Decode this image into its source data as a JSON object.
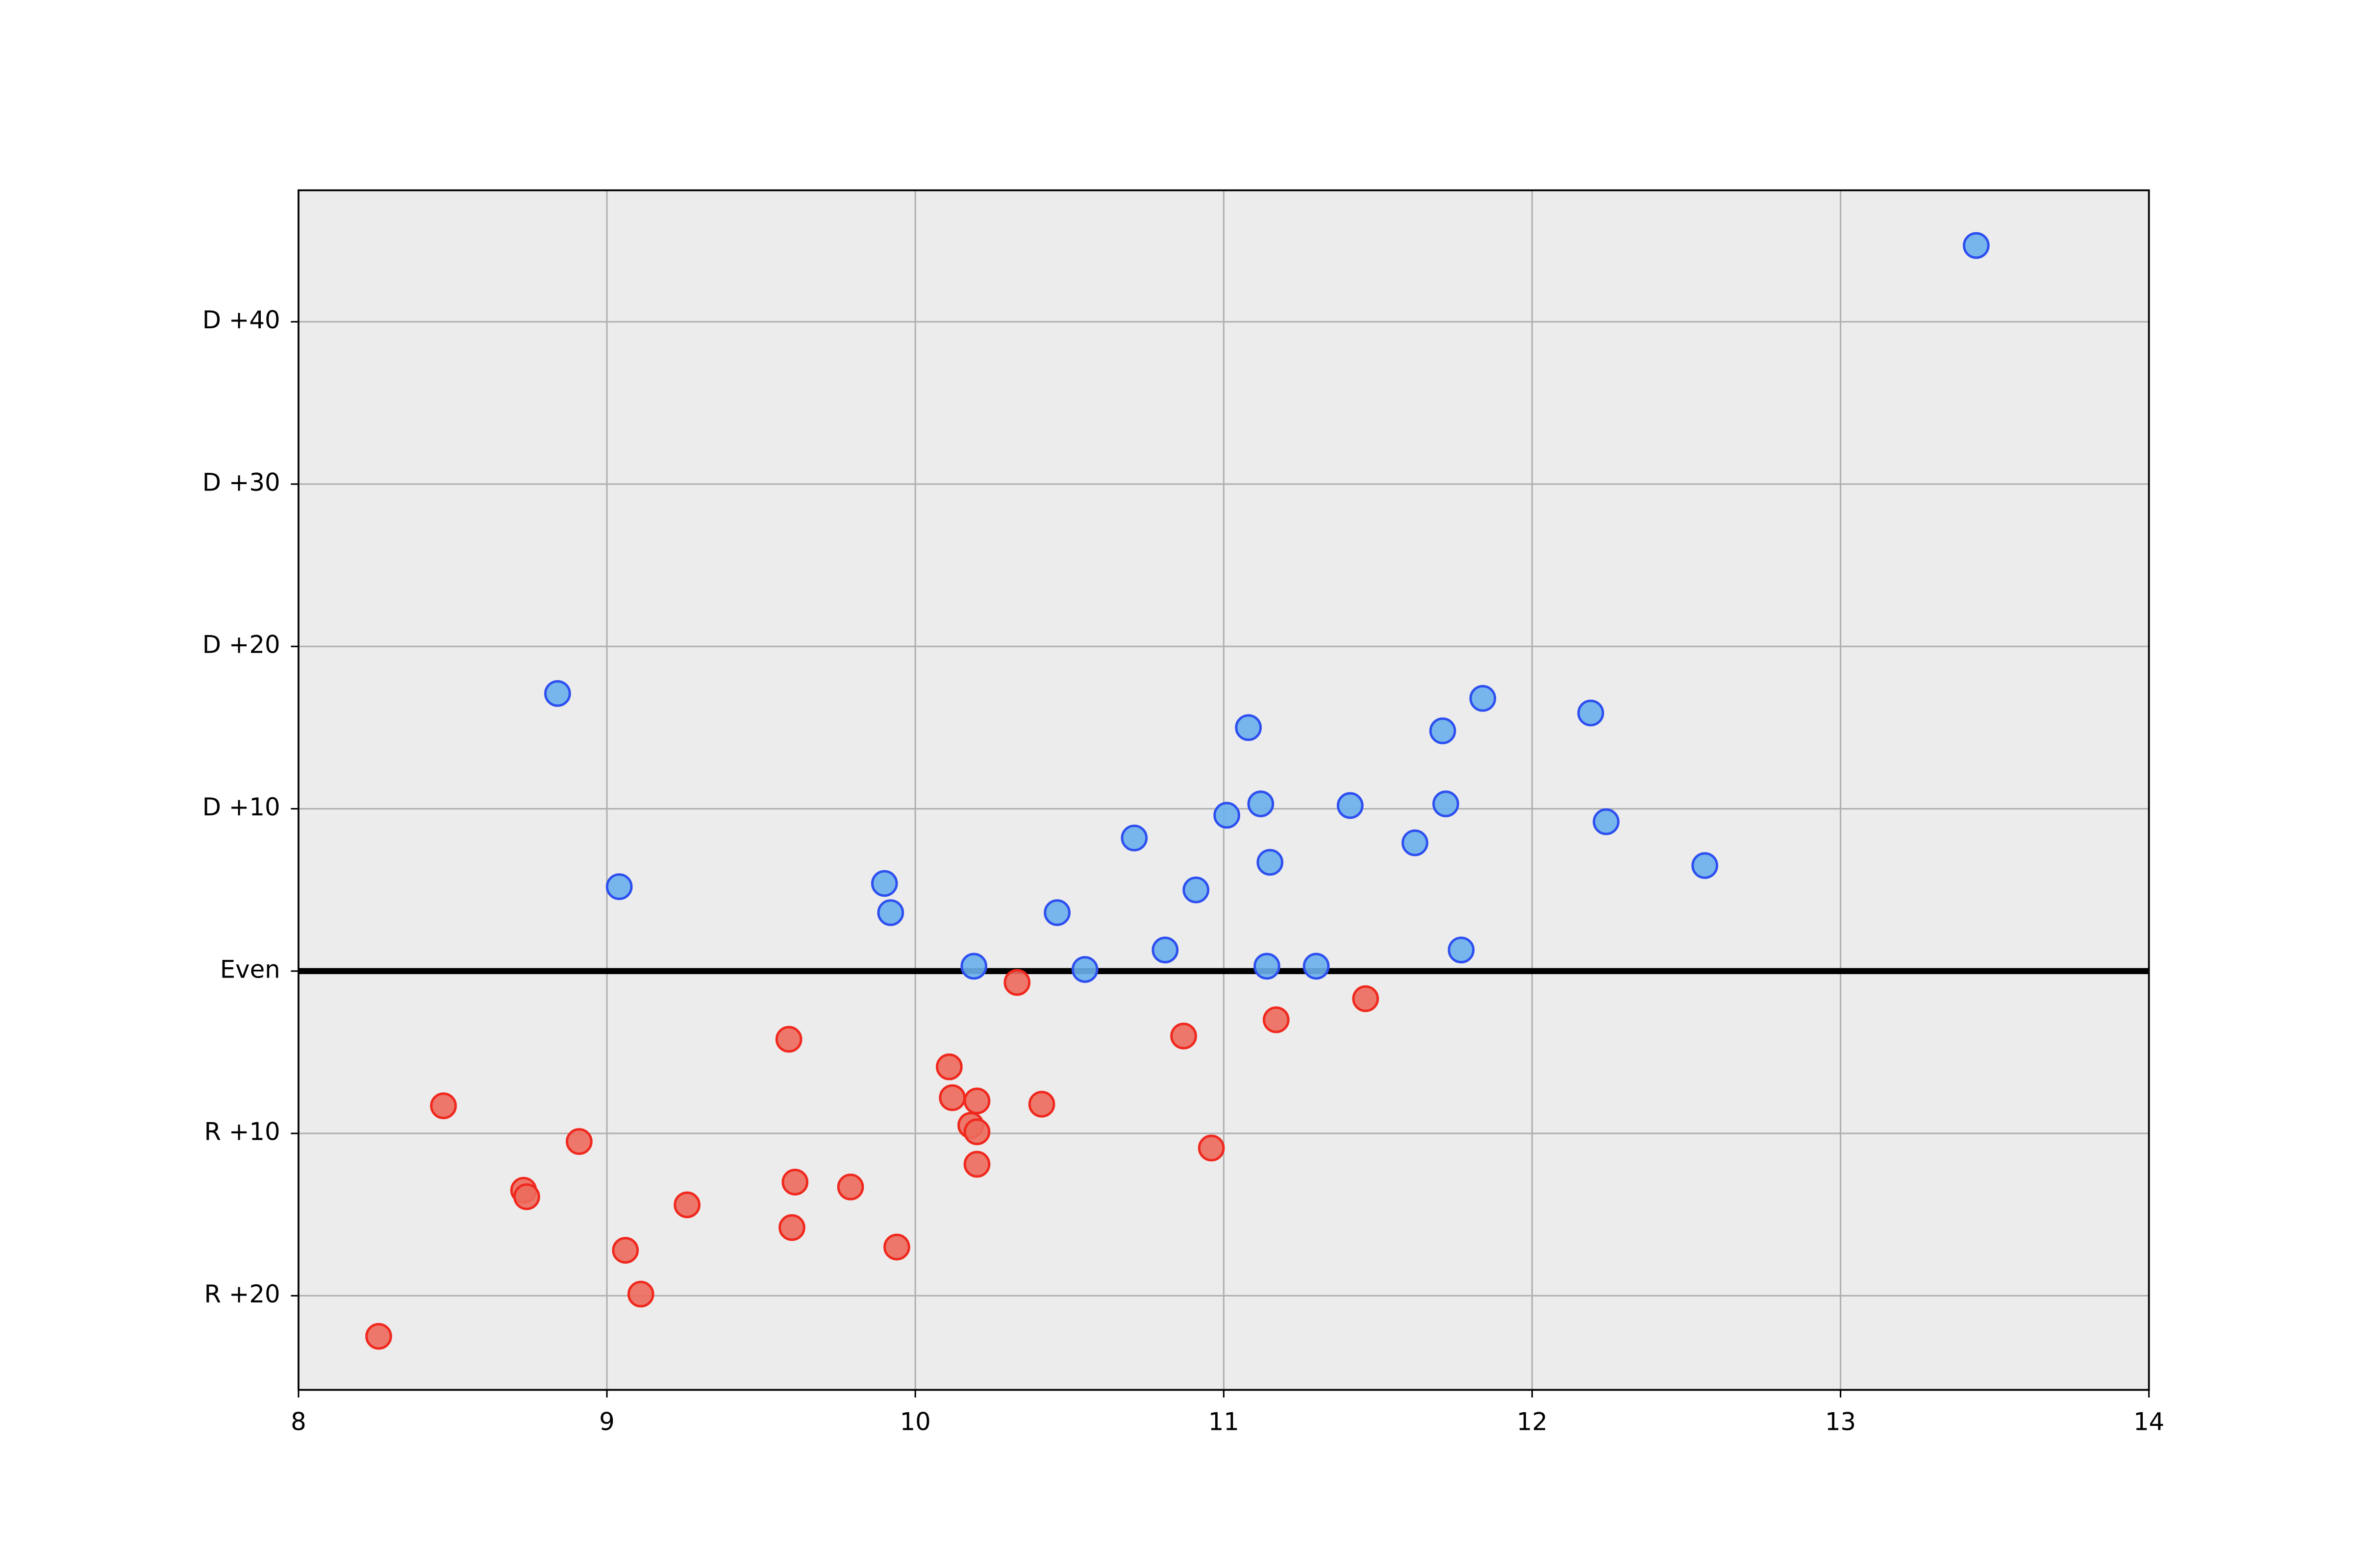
{
  "chart_data": {
    "type": "scatter",
    "xlim": [
      8,
      14
    ],
    "xticks": [
      8,
      9,
      10,
      11,
      12,
      13,
      14
    ],
    "ylim": [
      -25.8,
      48.1
    ],
    "yticks": [
      {
        "value": -20,
        "label": "R +20"
      },
      {
        "value": -10,
        "label": "R +10"
      },
      {
        "value": 0,
        "label": "Even"
      },
      {
        "value": 10,
        "label": "D +10"
      },
      {
        "value": 20,
        "label": "D +20"
      },
      {
        "value": 30,
        "label": "D +30"
      },
      {
        "value": 40,
        "label": "D +40"
      }
    ],
    "grid": true,
    "hline": 0,
    "background": "#ececec",
    "series": [
      {
        "color": "#6ab0ec",
        "edgecolor": "#2d4ff0",
        "x": [
          8.84,
          9.04,
          9.9,
          9.92,
          10.19,
          10.46,
          10.55,
          10.71,
          10.81,
          10.91,
          11.01,
          11.08,
          11.12,
          11.14,
          11.15,
          11.3,
          11.41,
          11.62,
          11.71,
          11.72,
          11.77,
          11.84,
          12.19,
          12.24,
          12.56,
          13.44
        ],
        "values": [
          17.1,
          5.2,
          5.4,
          3.6,
          0.3,
          3.6,
          0.1,
          8.2,
          1.3,
          5.0,
          9.6,
          15.0,
          10.3,
          0.3,
          6.7,
          0.3,
          10.2,
          7.9,
          14.8,
          10.3,
          1.3,
          16.8,
          15.9,
          9.2,
          6.5,
          44.7
        ]
      },
      {
        "color": "#ec6a5c",
        "edgecolor": "#f0281e",
        "x": [
          8.26,
          8.47,
          8.73,
          8.74,
          8.91,
          9.06,
          9.11,
          9.26,
          9.59,
          9.6,
          9.61,
          9.79,
          9.94,
          10.11,
          10.12,
          10.18,
          10.2,
          10.2,
          10.2,
          10.33,
          10.41,
          10.87,
          10.96,
          11.17,
          11.46
        ],
        "values": [
          -22.5,
          -8.3,
          -13.5,
          -13.9,
          -10.5,
          -17.2,
          -19.9,
          -14.4,
          -4.2,
          -15.8,
          -13.0,
          -13.3,
          -17.0,
          -5.9,
          -7.8,
          -9.5,
          -9.9,
          -8.0,
          -11.9,
          -0.7,
          -8.2,
          -4.0,
          -10.9,
          -3.0,
          -1.7
        ]
      }
    ]
  }
}
